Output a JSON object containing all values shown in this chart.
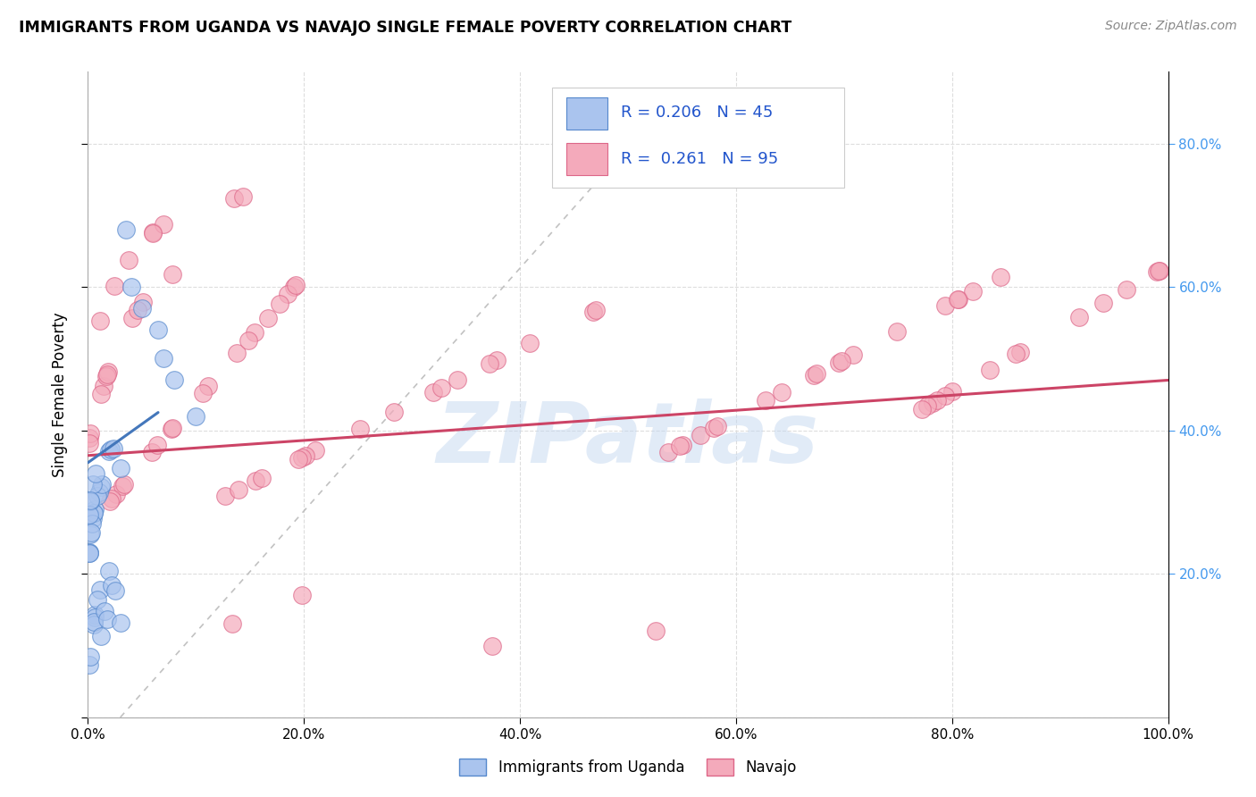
{
  "title": "IMMIGRANTS FROM UGANDA VS NAVAJO SINGLE FEMALE POVERTY CORRELATION CHART",
  "source": "Source: ZipAtlas.com",
  "ylabel": "Single Female Poverty",
  "legend_label1": "Immigrants from Uganda",
  "legend_label2": "Navajo",
  "R1": 0.206,
  "N1": 45,
  "R2": 0.261,
  "N2": 95,
  "watermark": "ZIPatlas",
  "color_uganda_fill": "#aac4ee",
  "color_uganda_edge": "#5588cc",
  "color_navajo_fill": "#f4aabb",
  "color_navajo_edge": "#dd6688",
  "color_line_uganda": "#4477bb",
  "color_line_navajo": "#cc4466",
  "color_diag": "#bbbbbb",
  "color_grid": "#dddddd",
  "color_tick_right": "#4499ee",
  "background": "#ffffff",
  "xlim": [
    0.0,
    1.0
  ],
  "ylim": [
    0.0,
    0.9
  ],
  "xticks": [
    0.0,
    0.2,
    0.4,
    0.6,
    0.8,
    1.0
  ],
  "xtick_labels": [
    "0.0%",
    "20.0%",
    "40.0%",
    "60.0%",
    "80.0%",
    "100.0%"
  ],
  "yticks_right": [
    0.2,
    0.4,
    0.6,
    0.8
  ],
  "ytick_labels_right": [
    "20.0%",
    "40.0%",
    "60.0%",
    "80.0%"
  ],
  "navajo_line_x": [
    0.0,
    1.0
  ],
  "navajo_line_y": [
    0.365,
    0.47
  ],
  "uganda_line_x": [
    0.0,
    0.065
  ],
  "uganda_line_y": [
    0.355,
    0.425
  ]
}
